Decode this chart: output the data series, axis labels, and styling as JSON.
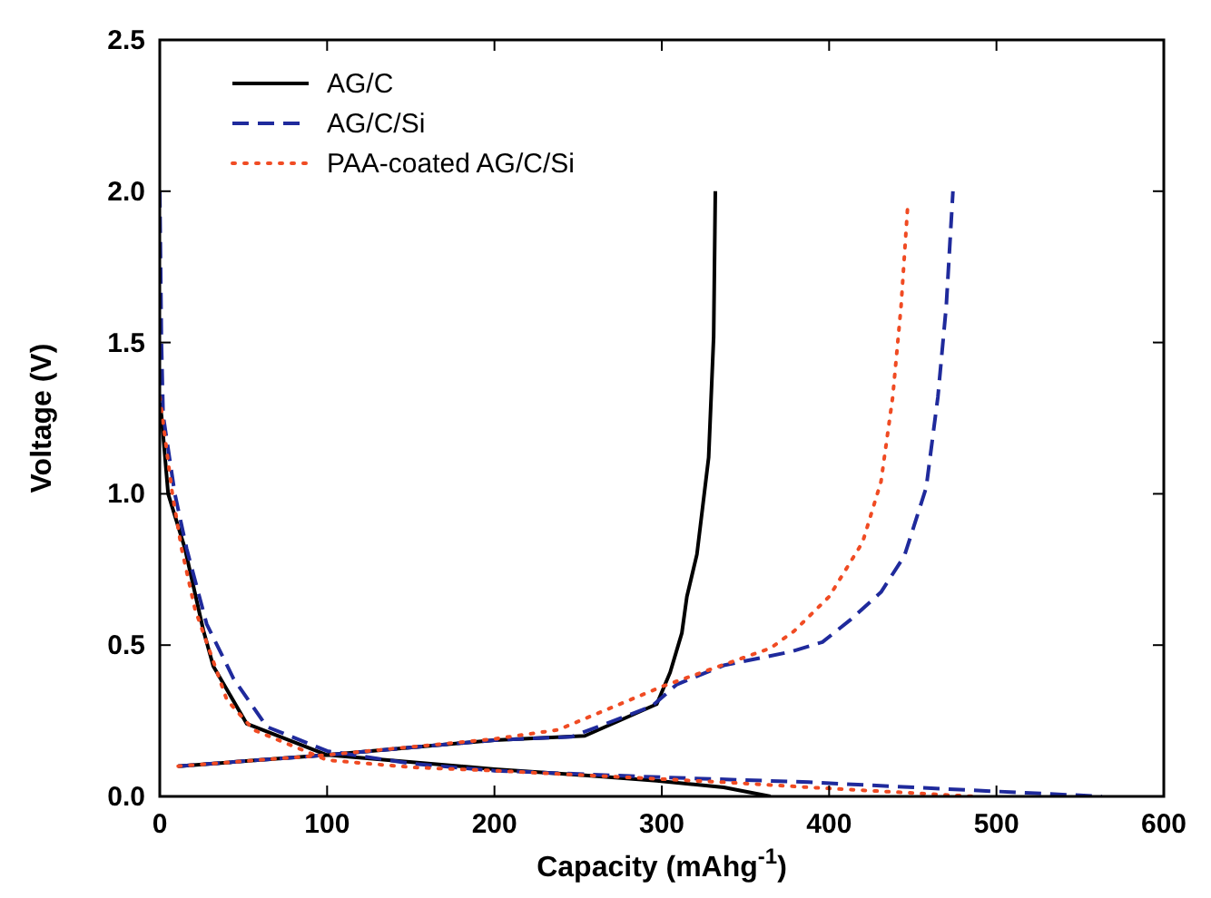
{
  "chart_data": {
    "type": "line",
    "xlabel": "Capacity (mAhg$^{-1}$)",
    "ylabel": "Voltage (V)",
    "xlim": [
      0,
      600
    ],
    "ylim": [
      0,
      2.5
    ],
    "xticks": [
      0,
      100,
      200,
      300,
      400,
      500,
      600
    ],
    "yticks": [
      {
        "value": 0,
        "label": "0.0"
      },
      {
        "value": 0.5,
        "label": "0.5"
      },
      {
        "value": 1,
        "label": "1.0"
      },
      {
        "value": 1.5,
        "label": "1.5"
      },
      {
        "value": 2,
        "label": "2.0"
      },
      {
        "value": 2.5,
        "label": "2.5"
      }
    ],
    "legend": "top left",
    "grid": false,
    "series": [
      {
        "name": "AG/C",
        "color": "#000000",
        "line_style": "solid",
        "x": [
          0,
          1,
          5,
          15,
          26,
          32,
          52,
          100,
          200,
          254,
          297,
          337,
          365,
          null,
          11,
          100,
          200,
          254,
          297,
          305,
          312,
          315,
          321,
          328,
          331,
          332
        ],
        "values": [
          1.3,
          1.26,
          1.0,
          0.82,
          0.55,
          0.43,
          0.24,
          0.137,
          0.09,
          0.07,
          0.052,
          0.03,
          0,
          null,
          0.1,
          0.137,
          0.186,
          0.2,
          0.305,
          0.41,
          0.54,
          0.66,
          0.8,
          1.12,
          1.52,
          2.0
        ]
      },
      {
        "name": "AG/C/Si",
        "color": "#1f2a9c",
        "line_style": "dashed",
        "x": [
          0,
          1,
          2,
          9,
          16,
          28,
          44,
          64,
          100,
          151,
          200,
          301,
          388,
          468,
          563,
          null,
          11,
          100,
          200,
          246,
          294,
          309,
          337,
          377,
          396,
          413,
          431,
          445,
          458,
          465,
          470,
          474
        ],
        "values": [
          2.0,
          1.5,
          1.26,
          1.0,
          0.82,
          0.57,
          0.39,
          0.23,
          0.15,
          0.108,
          0.085,
          0.063,
          0.047,
          0.025,
          0,
          null,
          0.1,
          0.137,
          0.186,
          0.197,
          0.298,
          0.37,
          0.433,
          0.478,
          0.51,
          0.585,
          0.675,
          0.795,
          1.02,
          1.32,
          1.62,
          2.0
        ]
      },
      {
        "name": "PAA-coated AG/C/Si",
        "color": "#f04b23",
        "line_style": "dotted",
        "x": [
          0,
          7.5,
          13,
          21,
          40,
          56,
          100,
          151,
          200,
          337,
          388,
          487,
          null,
          11,
          100,
          200,
          238,
          301,
          365,
          379,
          400,
          420,
          431,
          438,
          443,
          447
        ],
        "values": [
          1.32,
          1.0,
          0.82,
          0.62,
          0.32,
          0.22,
          0.12,
          0.096,
          0.085,
          0.047,
          0.03,
          0,
          null,
          0.1,
          0.137,
          0.19,
          0.22,
          0.365,
          0.49,
          0.546,
          0.66,
          0.84,
          1.04,
          1.32,
          1.62,
          1.955
        ]
      }
    ]
  }
}
